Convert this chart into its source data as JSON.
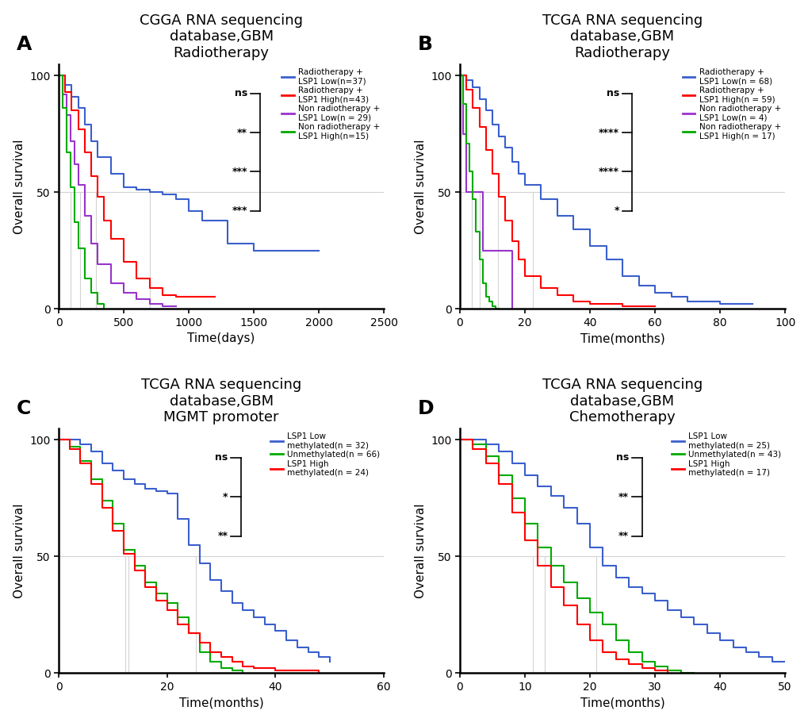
{
  "panels": [
    {
      "label": "A",
      "title": "CGGA RNA sequencing\ndatabase,GBM\nRadiotherapy",
      "xlabel": "Time(days)",
      "ylabel": "Overall survival",
      "xlim": [
        0,
        2500
      ],
      "ylim": [
        0,
        105
      ],
      "xticks": [
        0,
        500,
        1000,
        1500,
        2000,
        2500
      ],
      "yticks": [
        0,
        50,
        100
      ],
      "curves": [
        {
          "color": "#3A5FCD",
          "label": "Radiotherapy +\nLSP1 Low(n=37)",
          "x": [
            0,
            50,
            100,
            150,
            200,
            250,
            300,
            400,
            500,
            600,
            700,
            800,
            900,
            1000,
            1100,
            1300,
            1500,
            1700,
            1900,
            2000
          ],
          "y": [
            100,
            96,
            91,
            86,
            79,
            72,
            65,
            58,
            52,
            51,
            50,
            49,
            47,
            42,
            38,
            28,
            25,
            25,
            25,
            25
          ]
        },
        {
          "color": "#FF0000",
          "label": "Radiotherapy +\nLSP1 High(n=43)",
          "x": [
            0,
            50,
            100,
            150,
            200,
            250,
            300,
            350,
            400,
            500,
            600,
            700,
            800,
            900,
            1000,
            1100,
            1200
          ],
          "y": [
            100,
            93,
            85,
            77,
            67,
            57,
            48,
            38,
            30,
            20,
            13,
            9,
            6,
            5,
            5,
            5,
            5
          ]
        },
        {
          "color": "#9933CC",
          "label": "Non radiotherapy +\nLSP1 Low(n = 29)",
          "x": [
            0,
            30,
            60,
            90,
            120,
            150,
            200,
            250,
            300,
            400,
            500,
            600,
            700,
            800,
            900
          ],
          "y": [
            100,
            92,
            83,
            72,
            62,
            53,
            40,
            28,
            19,
            11,
            7,
            4,
            2,
            1,
            1
          ]
        },
        {
          "color": "#00AA00",
          "label": "Non radiotherapy +\nLSP1 High(n=15)",
          "x": [
            0,
            30,
            60,
            90,
            120,
            150,
            200,
            250,
            300,
            350
          ],
          "y": [
            100,
            86,
            67,
            52,
            37,
            26,
            13,
            7,
            2,
            0
          ]
        }
      ],
      "sig_texts": [
        "***",
        "***",
        "**",
        "ns"
      ],
      "sig_bracket_x_axes": 0.62,
      "sig_y_top_axes": 0.88,
      "sig_y_bot_axes": 0.4
    },
    {
      "label": "B",
      "title": "TCGA RNA sequencing\ndatabase,GBM\nRadiotherapy",
      "xlabel": "Time(months)",
      "ylabel": "Overall survival",
      "xlim": [
        0,
        100
      ],
      "ylim": [
        0,
        105
      ],
      "xticks": [
        0,
        20,
        40,
        60,
        80,
        100
      ],
      "yticks": [
        0,
        50,
        100
      ],
      "curves": [
        {
          "color": "#3A5FCD",
          "label": "Radiotherapy +\nLSP1 Low(n = 68)",
          "x": [
            0,
            2,
            4,
            6,
            8,
            10,
            12,
            14,
            16,
            18,
            20,
            25,
            30,
            35,
            40,
            45,
            50,
            55,
            60,
            65,
            70,
            80,
            90
          ],
          "y": [
            100,
            98,
            95,
            90,
            85,
            79,
            74,
            69,
            63,
            58,
            53,
            47,
            40,
            34,
            27,
            21,
            14,
            10,
            7,
            5,
            3,
            2,
            2
          ]
        },
        {
          "color": "#FF0000",
          "label": "Radiotherapy +\nLSP1 High(n = 59)",
          "x": [
            0,
            2,
            4,
            6,
            8,
            10,
            12,
            14,
            16,
            18,
            20,
            25,
            30,
            35,
            40,
            50,
            60
          ],
          "y": [
            100,
            94,
            86,
            78,
            68,
            58,
            48,
            38,
            29,
            21,
            14,
            9,
            6,
            3,
            2,
            1,
            1
          ]
        },
        {
          "color": "#9933CC",
          "label": "Non radiotherapy +\nLSP1 Low(n = 4)",
          "x": [
            0,
            1,
            2,
            3,
            5,
            6,
            7,
            10,
            12,
            14,
            16
          ],
          "y": [
            100,
            75,
            50,
            50,
            50,
            50,
            25,
            25,
            25,
            25,
            0
          ]
        },
        {
          "color": "#00AA00",
          "label": "Non radiotherapy +\nLSP1 High(n = 17)",
          "x": [
            0,
            1,
            2,
            3,
            4,
            5,
            6,
            7,
            8,
            9,
            10,
            11,
            12
          ],
          "y": [
            100,
            88,
            71,
            59,
            47,
            33,
            21,
            11,
            5,
            3,
            1,
            0,
            0
          ]
        }
      ],
      "sig_texts": [
        "*",
        "****",
        "****",
        "ns"
      ],
      "sig_bracket_x_axes": 0.53,
      "sig_y_top_axes": 0.88,
      "sig_y_bot_axes": 0.4
    },
    {
      "label": "C",
      "title": "TCGA RNA sequencing\ndatabase,GBM\nMGMT promoter",
      "xlabel": "Time(months)",
      "ylabel": "Overall survival",
      "xlim": [
        0,
        60
      ],
      "ylim": [
        0,
        105
      ],
      "xticks": [
        0,
        20,
        40,
        60
      ],
      "yticks": [
        0,
        50,
        100
      ],
      "curves": [
        {
          "color": "#3A5FCD",
          "label": "LSP1 Low\nmethylated(n = 32)",
          "x": [
            0,
            2,
            4,
            6,
            8,
            10,
            12,
            14,
            16,
            18,
            20,
            22,
            24,
            26,
            28,
            30,
            32,
            34,
            36,
            38,
            40,
            42,
            44,
            46,
            48,
            50
          ],
          "y": [
            100,
            100,
            98,
            95,
            90,
            87,
            83,
            81,
            79,
            78,
            77,
            66,
            55,
            47,
            40,
            35,
            30,
            27,
            24,
            21,
            18,
            14,
            11,
            9,
            7,
            5
          ]
        },
        {
          "color": "#00AA00",
          "label": "Unmethylated(n = 66)",
          "x": [
            0,
            2,
            4,
            6,
            8,
            10,
            12,
            14,
            16,
            18,
            20,
            22,
            24,
            26,
            28,
            30,
            32,
            34
          ],
          "y": [
            100,
            97,
            91,
            83,
            74,
            64,
            53,
            46,
            39,
            34,
            30,
            24,
            17,
            9,
            5,
            2,
            1,
            0
          ]
        },
        {
          "color": "#FF0000",
          "label": "LSP1 High\nmethylated(n = 24)",
          "x": [
            0,
            2,
            4,
            6,
            8,
            10,
            12,
            14,
            16,
            18,
            20,
            22,
            24,
            26,
            28,
            30,
            32,
            34,
            36,
            38,
            40,
            42,
            44,
            46,
            48
          ],
          "y": [
            100,
            96,
            90,
            81,
            71,
            61,
            51,
            44,
            37,
            31,
            27,
            21,
            17,
            13,
            9,
            7,
            5,
            3,
            2,
            2,
            1,
            1,
            1,
            1,
            0
          ]
        }
      ],
      "sig_texts": [
        "**",
        "*",
        "ns"
      ],
      "sig_bracket_x_axes": 0.56,
      "sig_y_top_axes": 0.88,
      "sig_y_bot_axes": 0.56
    },
    {
      "label": "D",
      "title": "TCGA RNA sequencing\ndatabase,GBM\nChemotherapy",
      "xlabel": "Time(months)",
      "ylabel": "Overall survival",
      "xlim": [
        0,
        50
      ],
      "ylim": [
        0,
        105
      ],
      "xticks": [
        0,
        10,
        20,
        30,
        40,
        50
      ],
      "yticks": [
        0,
        50,
        100
      ],
      "curves": [
        {
          "color": "#3A5FCD",
          "label": "LSP1 Low\nmethylated(n = 25)",
          "x": [
            0,
            2,
            4,
            6,
            8,
            10,
            12,
            14,
            16,
            18,
            20,
            22,
            24,
            26,
            28,
            30,
            32,
            34,
            36,
            38,
            40,
            42,
            44,
            46,
            48,
            50
          ],
          "y": [
            100,
            100,
            98,
            95,
            90,
            85,
            80,
            76,
            71,
            64,
            54,
            46,
            41,
            37,
            34,
            31,
            27,
            24,
            21,
            17,
            14,
            11,
            9,
            7,
            5,
            5
          ]
        },
        {
          "color": "#00AA00",
          "label": "Unmethylated(n = 43)",
          "x": [
            0,
            2,
            4,
            6,
            8,
            10,
            12,
            14,
            16,
            18,
            20,
            22,
            24,
            26,
            28,
            30,
            32,
            34,
            36
          ],
          "y": [
            100,
            98,
            93,
            85,
            75,
            64,
            54,
            46,
            39,
            32,
            26,
            21,
            14,
            9,
            5,
            3,
            1,
            0,
            0
          ]
        },
        {
          "color": "#FF0000",
          "label": "LSP1 High\nmethylated(n = 17)",
          "x": [
            0,
            2,
            4,
            6,
            8,
            10,
            12,
            14,
            16,
            18,
            20,
            22,
            24,
            26,
            28,
            30,
            32
          ],
          "y": [
            100,
            96,
            90,
            81,
            69,
            57,
            46,
            37,
            29,
            21,
            14,
            9,
            6,
            4,
            2,
            1,
            0
          ]
        }
      ],
      "sig_texts": [
        "**",
        "**",
        "ns"
      ],
      "sig_bracket_x_axes": 0.56,
      "sig_y_top_axes": 0.88,
      "sig_y_bot_axes": 0.56
    }
  ]
}
